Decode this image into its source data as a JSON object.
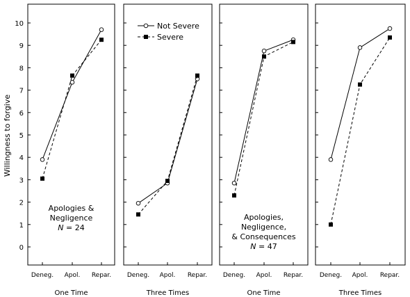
{
  "figure": {
    "ylabel": "Willingness to forgive"
  },
  "chart_data": [
    {
      "type": "line",
      "xlabel": "One Time",
      "categories": [
        "Deneg.",
        "Apol.",
        "Repar."
      ],
      "ylim": [
        -1,
        10.7
      ],
      "yticks": [
        0,
        1,
        2,
        3,
        4,
        5,
        6,
        7,
        8,
        9,
        10
      ],
      "annotation": [
        "Apologies &",
        "Negligence",
        "N = 24"
      ],
      "series": [
        {
          "name": "Not Severe",
          "values": [
            3.9,
            7.35,
            9.7
          ]
        },
        {
          "name": "Severe",
          "values": [
            3.05,
            7.65,
            9.25
          ]
        }
      ]
    },
    {
      "type": "line",
      "xlabel": "Three Times",
      "categories": [
        "Deneg.",
        "Apol.",
        "Repar."
      ],
      "ylim": [
        -1,
        10.7
      ],
      "legend": "top",
      "series": [
        {
          "name": "Not Severe",
          "values": [
            1.95,
            2.85,
            7.5
          ]
        },
        {
          "name": "Severe",
          "values": [
            1.45,
            2.95,
            7.65
          ]
        }
      ]
    },
    {
      "type": "line",
      "xlabel": "One Time",
      "categories": [
        "Deneg.",
        "Apol.",
        "Repar."
      ],
      "ylim": [
        -1,
        10.7
      ],
      "annotation": [
        "Apologies,",
        "Negligence,",
        "& Consequences",
        "N = 47"
      ],
      "series": [
        {
          "name": "Not Severe",
          "values": [
            2.85,
            8.75,
            9.25
          ]
        },
        {
          "name": "Severe",
          "values": [
            2.3,
            8.5,
            9.15
          ]
        }
      ]
    },
    {
      "type": "line",
      "xlabel": "Three Times",
      "categories": [
        "Deneg.",
        "Apol.",
        "Repar."
      ],
      "ylim": [
        -1,
        10.7
      ],
      "series": [
        {
          "name": "Not Severe",
          "values": [
            3.9,
            8.9,
            9.75
          ]
        },
        {
          "name": "Severe",
          "values": [
            1.0,
            7.25,
            9.35
          ]
        }
      ]
    }
  ]
}
